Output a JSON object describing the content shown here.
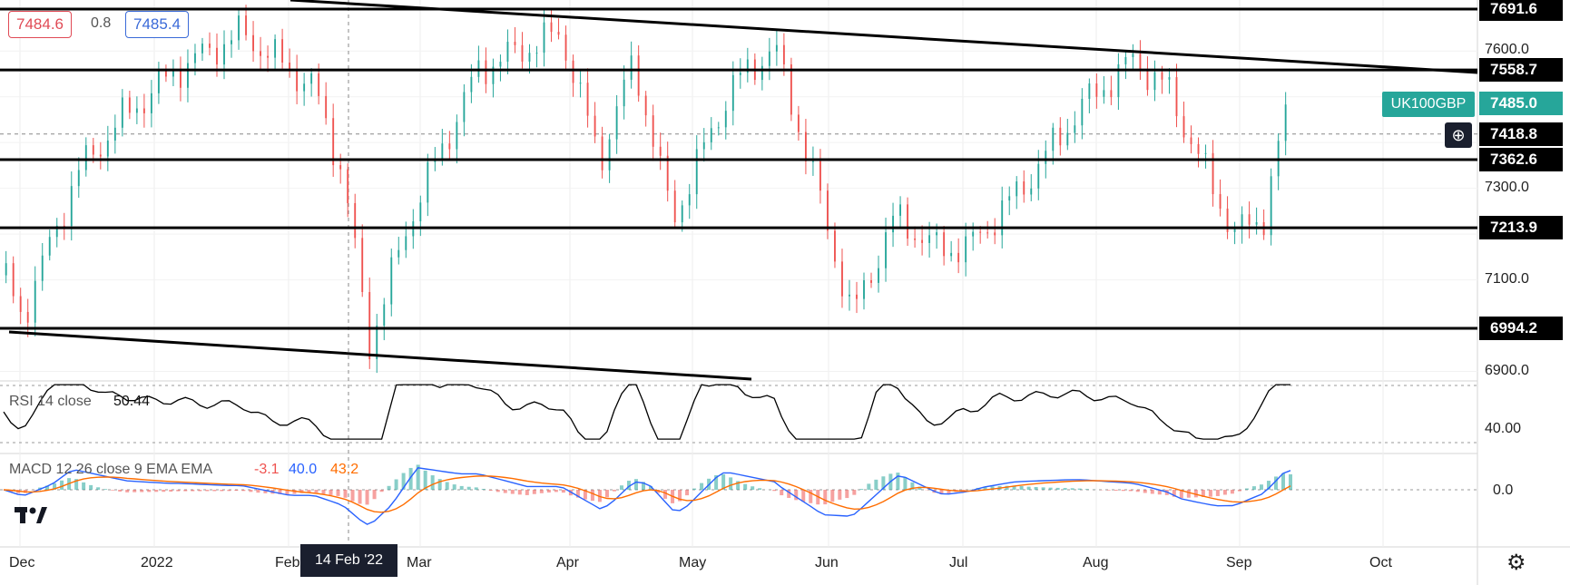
{
  "quote": {
    "bid": "7484.6",
    "spread": "0.8",
    "ask": "7485.4"
  },
  "symbol": "UK100GBP",
  "price_axis": {
    "ticks": [
      "7600.0",
      "7300.0",
      "7100.0",
      "6900.0"
    ],
    "tags": [
      {
        "label": "7691.6",
        "value": 7691.6,
        "kind": "level"
      },
      {
        "label": "7558.7",
        "value": 7558.7,
        "kind": "level"
      },
      {
        "label": "7485.0",
        "value": 7485.0,
        "kind": "current"
      },
      {
        "label": "7418.8",
        "value": 7418.8,
        "kind": "cursor"
      },
      {
        "label": "7362.6",
        "value": 7362.6,
        "kind": "level"
      },
      {
        "label": "7213.9",
        "value": 7213.9,
        "kind": "level"
      },
      {
        "label": "6994.2",
        "value": 6994.2,
        "kind": "level"
      }
    ]
  },
  "time_axis": {
    "labels": [
      "Dec",
      "2022",
      "Feb",
      "Mar",
      "Apr",
      "May",
      "Jun",
      "Jul",
      "Aug",
      "Sep",
      "Oct"
    ],
    "highlight": "14 Feb '22"
  },
  "rsi": {
    "label": "RSI 14 close",
    "value": "50.44",
    "tick": "40.00"
  },
  "macd": {
    "label": "MACD 12 26 close 9 EMA EMA",
    "hist": "-3.1",
    "macd": "40.0",
    "signal": "43.2",
    "tick": "0.0"
  },
  "colors": {
    "up": "#26a69a",
    "down": "#ef5350",
    "line": "#000000",
    "macd": "#2962ff",
    "signal": "#ff6d00"
  },
  "icons": [
    "tradingview-logo-icon",
    "plus-circle-icon",
    "gear-icon"
  ],
  "chart_data": {
    "type": "line",
    "title": "UK100GBP",
    "xlabel": "",
    "ylabel": "",
    "ylim": [
      6880,
      7700
    ],
    "horizontal_levels": [
      7691.6,
      7558.7,
      7362.6,
      7213.9,
      6994.2
    ],
    "series": [
      {
        "name": "UK100GBP",
        "x": [
          "Dec",
          "2022",
          "Feb",
          "Mar",
          "Apr",
          "May",
          "Jun",
          "Jul",
          "Aug",
          "Sep"
        ],
        "values": [
          7110,
          7530,
          7620,
          6960,
          7640,
          7330,
          7610,
          7170,
          7520,
          7485
        ]
      }
    ]
  }
}
